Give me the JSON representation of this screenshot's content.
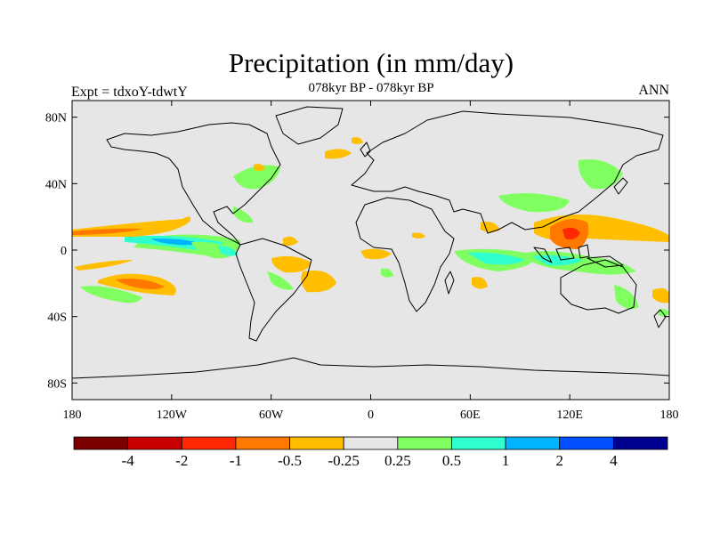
{
  "figure": {
    "title": "Precipitation (in mm/day)",
    "subtitle": "078kyr BP - 078kyr BP",
    "left_label": "Expt = tdxoY-tdwtY",
    "right_label": "ANN"
  },
  "map": {
    "projection": "cylindrical-equidistant",
    "lon_range": [
      -180,
      180
    ],
    "lat_range": [
      -90,
      90
    ],
    "background_color": "#e6e6e6",
    "coastline_color": "#000000",
    "y_ticks": [
      {
        "lat": 80,
        "label": "80N"
      },
      {
        "lat": 40,
        "label": "40N"
      },
      {
        "lat": 0,
        "label": "0"
      },
      {
        "lat": -40,
        "label": "40S"
      },
      {
        "lat": -80,
        "label": "80S"
      }
    ],
    "x_ticks": [
      {
        "lon": -180,
        "label": "180"
      },
      {
        "lon": -120,
        "label": "120W"
      },
      {
        "lon": -60,
        "label": "60W"
      },
      {
        "lon": 0,
        "label": "0"
      },
      {
        "lon": 60,
        "label": "60E"
      },
      {
        "lon": 120,
        "label": "120E"
      },
      {
        "lon": 180,
        "label": "180"
      }
    ]
  },
  "colorbar": {
    "colors": [
      "#7a0000",
      "#c80000",
      "#ff2800",
      "#ff7800",
      "#ffbe00",
      "#e6e6e6",
      "#80ff60",
      "#30ffd0",
      "#00b4ff",
      "#0050ff",
      "#000090"
    ],
    "labels": [
      "-4",
      "-2",
      "-1",
      "-0.5",
      "-0.25",
      "0.25",
      "0.5",
      "1",
      "2",
      "4"
    ]
  }
}
